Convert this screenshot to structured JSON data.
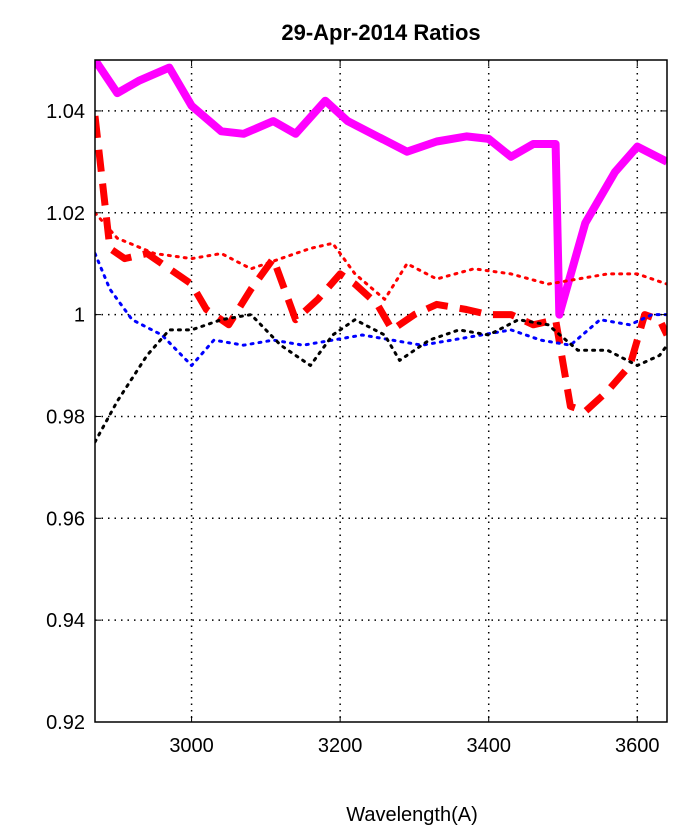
{
  "chart_data": {
    "type": "line",
    "title": "29-Apr-2014 Ratios",
    "xlabel": "Wavelength(A)",
    "ylabel": "",
    "xlim": [
      2870,
      3640
    ],
    "ylim": [
      0.92,
      1.05
    ],
    "xticks": [
      3000,
      3200,
      3400,
      3600
    ],
    "yticks": [
      0.92,
      0.94,
      0.96,
      0.98,
      1,
      1.02,
      1.04
    ],
    "xtick_labels": [
      "3000",
      "3200",
      "3400",
      "3600"
    ],
    "ytick_labels": [
      "0.92",
      "0.94",
      "0.96",
      "0.98",
      "1",
      "1.02",
      "1.04"
    ],
    "grid": true,
    "series": [
      {
        "color": "#ff00ff",
        "style": "solid",
        "width": 8,
        "x": [
          2870,
          2900,
          2930,
          2970,
          3000,
          3040,
          3070,
          3110,
          3140,
          3180,
          3210,
          3250,
          3290,
          3330,
          3370,
          3400,
          3430,
          3460,
          3490,
          3495,
          3530,
          3570,
          3600,
          3640
        ],
        "y": [
          1.05,
          1.0435,
          1.046,
          1.0485,
          1.041,
          1.036,
          1.0355,
          1.038,
          1.0355,
          1.042,
          1.038,
          1.035,
          1.032,
          1.034,
          1.035,
          1.0345,
          1.031,
          1.0335,
          1.0335,
          1.0,
          1.018,
          1.028,
          1.033,
          1.03
        ]
      },
      {
        "color": "#ff0000",
        "style": "dashed",
        "width": 7,
        "x": [
          2870,
          2890,
          2910,
          2940,
          2970,
          3000,
          3020,
          3050,
          3080,
          3110,
          3140,
          3170,
          3200,
          3220,
          3250,
          3270,
          3300,
          3330,
          3370,
          3400,
          3430,
          3460,
          3490,
          3510,
          3530,
          3560,
          3590,
          3610,
          3630,
          3640
        ],
        "y": [
          1.039,
          1.013,
          1.011,
          1.012,
          1.009,
          1.006,
          1.001,
          0.998,
          1.005,
          1.011,
          0.999,
          1.003,
          1.008,
          1.006,
          1.002,
          0.997,
          1.0,
          1.002,
          1.001,
          1.0,
          1.0,
          0.998,
          0.999,
          0.982,
          0.981,
          0.985,
          0.99,
          1.0,
          0.999,
          0.996
        ]
      },
      {
        "color": "#ff0000",
        "style": "dotted",
        "width": 3,
        "x": [
          2870,
          2900,
          2950,
          3000,
          3040,
          3080,
          3120,
          3160,
          3190,
          3220,
          3260,
          3290,
          3330,
          3380,
          3430,
          3480,
          3520,
          3560,
          3600,
          3640
        ],
        "y": [
          1.02,
          1.015,
          1.012,
          1.011,
          1.012,
          1.009,
          1.011,
          1.013,
          1.014,
          1.008,
          1.003,
          1.01,
          1.007,
          1.009,
          1.008,
          1.006,
          1.007,
          1.008,
          1.008,
          1.006
        ]
      },
      {
        "color": "#0000ff",
        "style": "dotted",
        "width": 3,
        "x": [
          2870,
          2890,
          2920,
          2960,
          3000,
          3030,
          3070,
          3110,
          3150,
          3190,
          3230,
          3270,
          3310,
          3350,
          3390,
          3430,
          3470,
          3510,
          3550,
          3590,
          3620,
          3640
        ],
        "y": [
          1.012,
          1.005,
          0.999,
          0.996,
          0.99,
          0.995,
          0.994,
          0.995,
          0.994,
          0.995,
          0.996,
          0.995,
          0.994,
          0.995,
          0.996,
          0.997,
          0.995,
          0.994,
          0.999,
          0.998,
          1.0,
          1.0
        ]
      },
      {
        "color": "#000000",
        "style": "dotted",
        "width": 3,
        "x": [
          2870,
          2900,
          2940,
          2970,
          3000,
          3040,
          3080,
          3120,
          3160,
          3190,
          3220,
          3260,
          3280,
          3320,
          3360,
          3400,
          3440,
          3480,
          3520,
          3560,
          3600,
          3630,
          3640
        ],
        "y": [
          0.975,
          0.983,
          0.992,
          0.997,
          0.997,
          0.999,
          1.0,
          0.994,
          0.99,
          0.996,
          0.999,
          0.996,
          0.991,
          0.995,
          0.997,
          0.996,
          0.999,
          0.998,
          0.993,
          0.993,
          0.99,
          0.992,
          0.994
        ]
      }
    ]
  }
}
